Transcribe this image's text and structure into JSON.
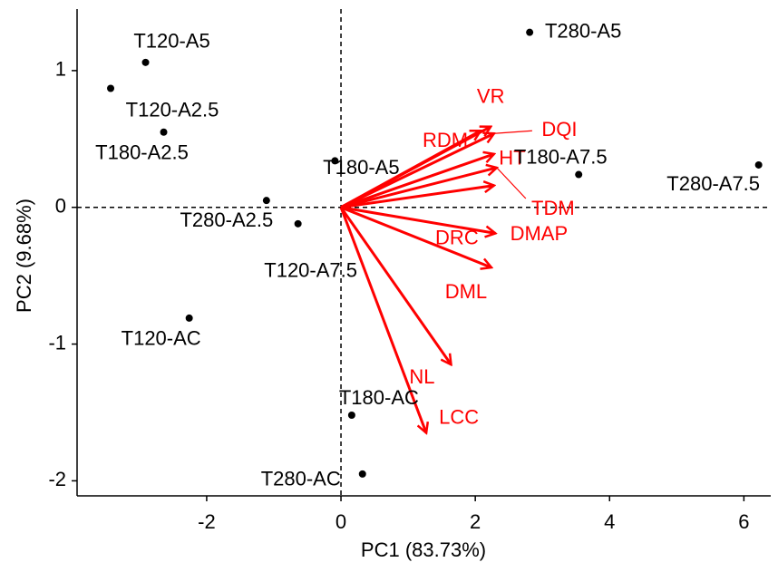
{
  "chart_data": {
    "type": "biplot",
    "xlabel": "PC1 (83.73%)",
    "ylabel": "PC2 (9.68%)",
    "xlim": [
      -3.93,
      6.4
    ],
    "ylim": [
      -2.11,
      1.45
    ],
    "xticks": [
      -2,
      0,
      2,
      4,
      6
    ],
    "yticks": [
      -2,
      -1,
      0,
      1
    ],
    "reference_lines": {
      "x": 0,
      "y": 0
    },
    "points": {
      "color": "#000000",
      "labels": [
        "T120-A5",
        "T120-A2.5",
        "T180-A2.5",
        "T280-A2.5",
        "T180-A5",
        "T120-A7.5",
        "T120-AC",
        "T180-AC",
        "T280-AC",
        "T280-A5",
        "T180-A7.5",
        "T280-A7.5"
      ],
      "x": [
        -2.91,
        -3.43,
        -2.64,
        -1.11,
        -0.09,
        -0.64,
        -2.26,
        0.16,
        0.32,
        2.81,
        3.54,
        6.22
      ],
      "y": [
        1.06,
        0.87,
        0.55,
        0.05,
        0.34,
        -0.12,
        -0.81,
        -1.52,
        -1.95,
        1.28,
        0.24,
        0.31
      ]
    },
    "loadings": {
      "color": "#ff0000",
      "labels": [
        "VR",
        "RDM",
        "DQI",
        "HT",
        "TDM",
        "DRC",
        "DMAP",
        "DML",
        "NL",
        "LCC"
      ],
      "x": [
        2.23,
        2.08,
        2.28,
        2.28,
        2.32,
        2.28,
        2.3,
        2.24,
        1.64,
        1.27
      ],
      "y": [
        0.59,
        0.56,
        0.54,
        0.39,
        0.29,
        0.16,
        -0.19,
        -0.44,
        -1.15,
        -1.65
      ]
    }
  }
}
